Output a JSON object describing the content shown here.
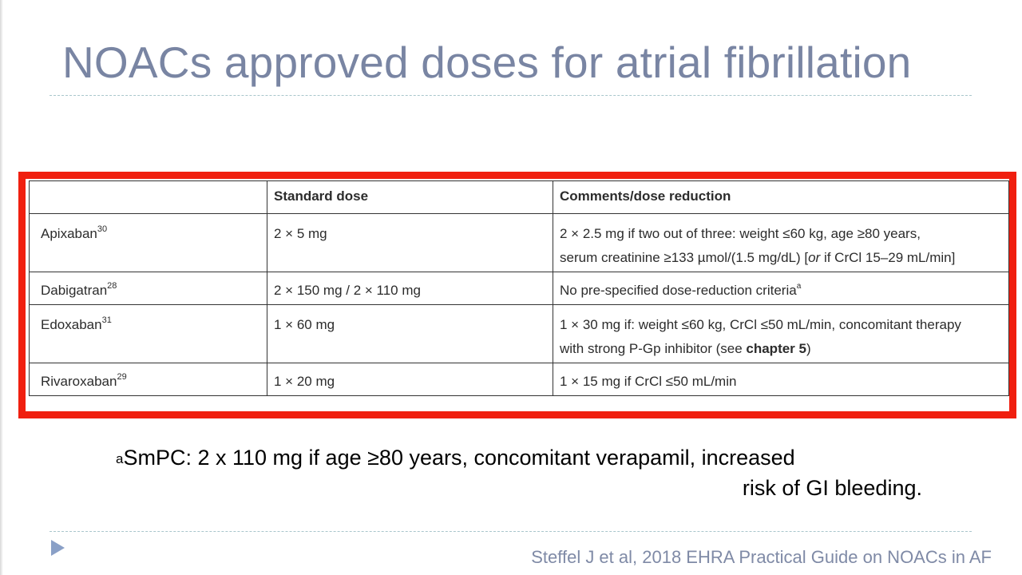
{
  "slide": {
    "title": "NOACs approved doses for atrial fibrillation",
    "accent_color": "#f01f0f",
    "title_color": "#7985a3"
  },
  "table": {
    "headers": [
      "",
      "Standard dose",
      "Comments/dose reduction"
    ],
    "rows": [
      {
        "drug": "Apixaban",
        "ref": "30",
        "standard_dose": "2 × 5 mg",
        "comments_line1": "2 × 2.5 mg if two out of three: weight ≤60 kg, age ≥80 years,",
        "comments_line2_pre": "serum creatinine ≥133 µmol/(1.5 mg/dL) [",
        "comments_line2_em": "or",
        "comments_line2_post": " if CrCl 15–29 mL/min]"
      },
      {
        "drug": "Dabigatran",
        "ref": "28",
        "standard_dose": "2 × 150 mg / 2 × 110 mg",
        "comments": "No pre-specified dose-reduction criteria",
        "comments_mark": "a"
      },
      {
        "drug": "Edoxaban",
        "ref": "31",
        "standard_dose": "1 × 60 mg",
        "comments_line1": "1 × 30 mg if: weight ≤60 kg, CrCl ≤50 mL/min, concomitant therapy",
        "comments_line2_pre": "with strong P-Gp inhibitor (see ",
        "comments_line2_bold": "chapter 5",
        "comments_line2_post": ")"
      },
      {
        "drug": "Rivaroxaban",
        "ref": "29",
        "standard_dose": "1 × 20 mg",
        "comments": "1 × 15 mg if CrCl ≤50 mL/min"
      }
    ]
  },
  "footnote": {
    "mark": "a",
    "line1": "SmPC: 2 x 110 mg if age ≥80 years, concomitant verapamil, increased",
    "line2": "risk of GI bleeding."
  },
  "citation": "Steffel J et al, 2018 EHRA Practical Guide on NOACs in AF",
  "nav": {
    "icon": "play-triangle-icon"
  }
}
